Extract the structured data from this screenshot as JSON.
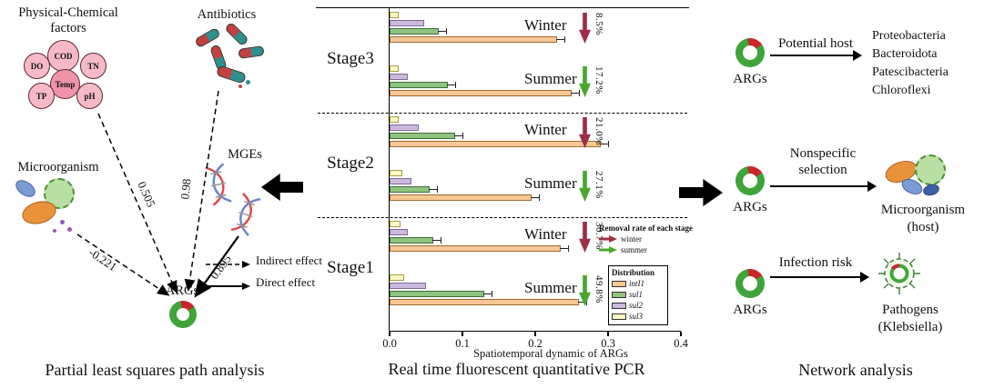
{
  "left_panel": {
    "caption": "Partial least squares path analysis",
    "factors_label": "Physical-Chemical\nfactors",
    "factor_nodes": [
      "DO",
      "COD",
      "TN",
      "Temp",
      "TP",
      "pH"
    ],
    "antibiotics_label": "Antibiotics",
    "microorganism_label": "Microorganism",
    "mges_label": "MGEs",
    "args_label": "ARGs",
    "coefficients": {
      "physical_to_args": "0.505",
      "antibiotics_to_args": "0.98",
      "microorganism_to_args": "-0.221",
      "mges_to_args": "0.895"
    },
    "legend": {
      "indirect": "Indirect effect",
      "direct": "Direct effect"
    }
  },
  "middle_panel": {
    "caption": "Real time fluorescent quantitative PCR",
    "stage_labels": [
      "Stage3",
      "Stage2",
      "Stage1"
    ]
  },
  "chart_data": {
    "type": "bar",
    "orientation": "horizontal",
    "xlabel": "Spatiotemporal dynamic of ARGs",
    "xlim": [
      0.0,
      0.4
    ],
    "xticks": [
      "0.0",
      "0.1",
      "0.2",
      "0.3",
      "0.4"
    ],
    "series": [
      "intI1",
      "sul1",
      "sul2",
      "sul3"
    ],
    "series_colors": {
      "intI1": "#f7c795",
      "sul1": "#8fc380",
      "sul2": "#cdb9dd",
      "sul3": "#fcf9c4"
    },
    "series_border_colors": {
      "intI1": "#9c6b33",
      "sul1": "#3f6e39",
      "sul2": "#7d6b99",
      "sul3": "#a3a04a"
    },
    "error_approx": 0.012,
    "groups": [
      {
        "stage": "Stage3",
        "season": "Winter",
        "removal_rate": "8.5%",
        "values": {
          "intI1": 0.23,
          "sul1": 0.068,
          "sul2": 0.048,
          "sul3": 0.012
        }
      },
      {
        "stage": "Stage3",
        "season": "Summer",
        "removal_rate": "17.2%",
        "values": {
          "intI1": 0.25,
          "sul1": 0.08,
          "sul2": 0.025,
          "sul3": 0.012
        }
      },
      {
        "stage": "Stage2",
        "season": "Winter",
        "removal_rate": "21.0%",
        "values": {
          "intI1": 0.29,
          "sul1": 0.09,
          "sul2": 0.04,
          "sul3": 0.012
        }
      },
      {
        "stage": "Stage2",
        "season": "Summer",
        "removal_rate": "27.1%",
        "values": {
          "intI1": 0.195,
          "sul1": 0.055,
          "sul2": 0.03,
          "sul3": 0.018
        }
      },
      {
        "stage": "Stage1",
        "season": "Winter",
        "removal_rate": "30.7%",
        "values": {
          "intI1": 0.235,
          "sul1": 0.06,
          "sul2": 0.025,
          "sul3": 0.015
        }
      },
      {
        "stage": "Stage1",
        "season": "Summer",
        "removal_rate": "49.8%",
        "values": {
          "intI1": 0.26,
          "sul1": 0.13,
          "sul2": 0.05,
          "sul3": 0.02
        }
      }
    ],
    "removal_legend": {
      "title": "Removal rate of each stage",
      "items": [
        {
          "label": "winter",
          "color": "#9c2f45"
        },
        {
          "label": "summer",
          "color": "#4aa72e"
        }
      ]
    },
    "distribution_legend": {
      "title": "Distribution"
    }
  },
  "right_panel": {
    "caption": "Network analysis",
    "rows": [
      {
        "source": "ARGs",
        "relation": "Potential host",
        "targets": [
          "Proteobacteria",
          "Bacteroidota",
          "Patescibacteria",
          "Chloroflexi"
        ]
      },
      {
        "source": "ARGs",
        "relation": "Nonspecific\nselection",
        "targets": [
          "Microorganism\n(host)"
        ]
      },
      {
        "source": "ARGs",
        "relation": "Infection risk",
        "targets": [
          "Pathogens\n(Klebsiella)"
        ]
      }
    ]
  }
}
